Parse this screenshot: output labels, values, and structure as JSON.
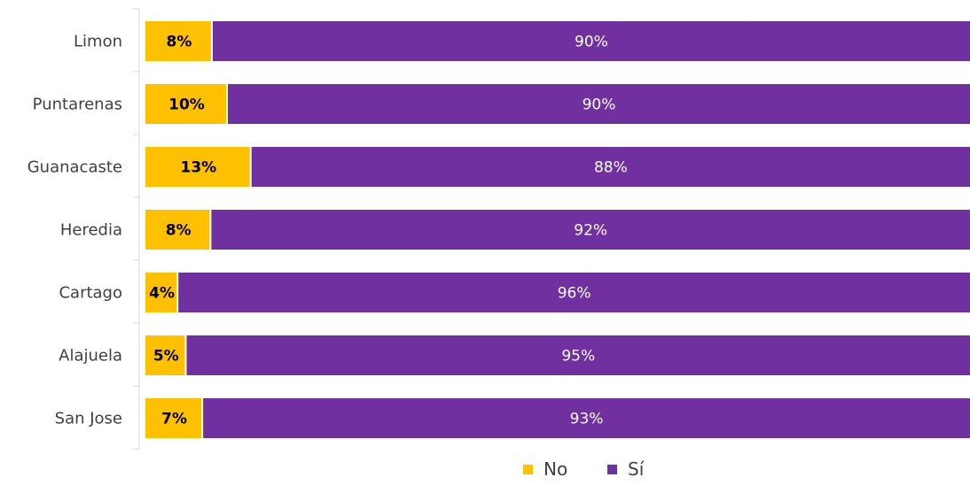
{
  "chart_data": {
    "type": "bar",
    "orientation": "horizontal",
    "stacked": true,
    "categories": [
      "Limon",
      "Puntarenas",
      "Guanacaste",
      "Heredia",
      "Cartago",
      "Alajuela",
      "San Jose"
    ],
    "series": [
      {
        "name": "No",
        "color": "#FFC000",
        "values": [
          8,
          10,
          13,
          8,
          4,
          5,
          7
        ],
        "labels": [
          "8%",
          "10%",
          "13%",
          "8%",
          "4%",
          "5%",
          "7%"
        ]
      },
      {
        "name": "Sí",
        "color": "#7030A0",
        "values": [
          90,
          90,
          88,
          92,
          96,
          95,
          93
        ],
        "labels": [
          "90%",
          "90%",
          "88%",
          "92%",
          "96%",
          "95%",
          "93%"
        ]
      }
    ],
    "legend": {
      "position": "bottom",
      "items": [
        "No",
        "Sí"
      ]
    },
    "grid": false
  }
}
